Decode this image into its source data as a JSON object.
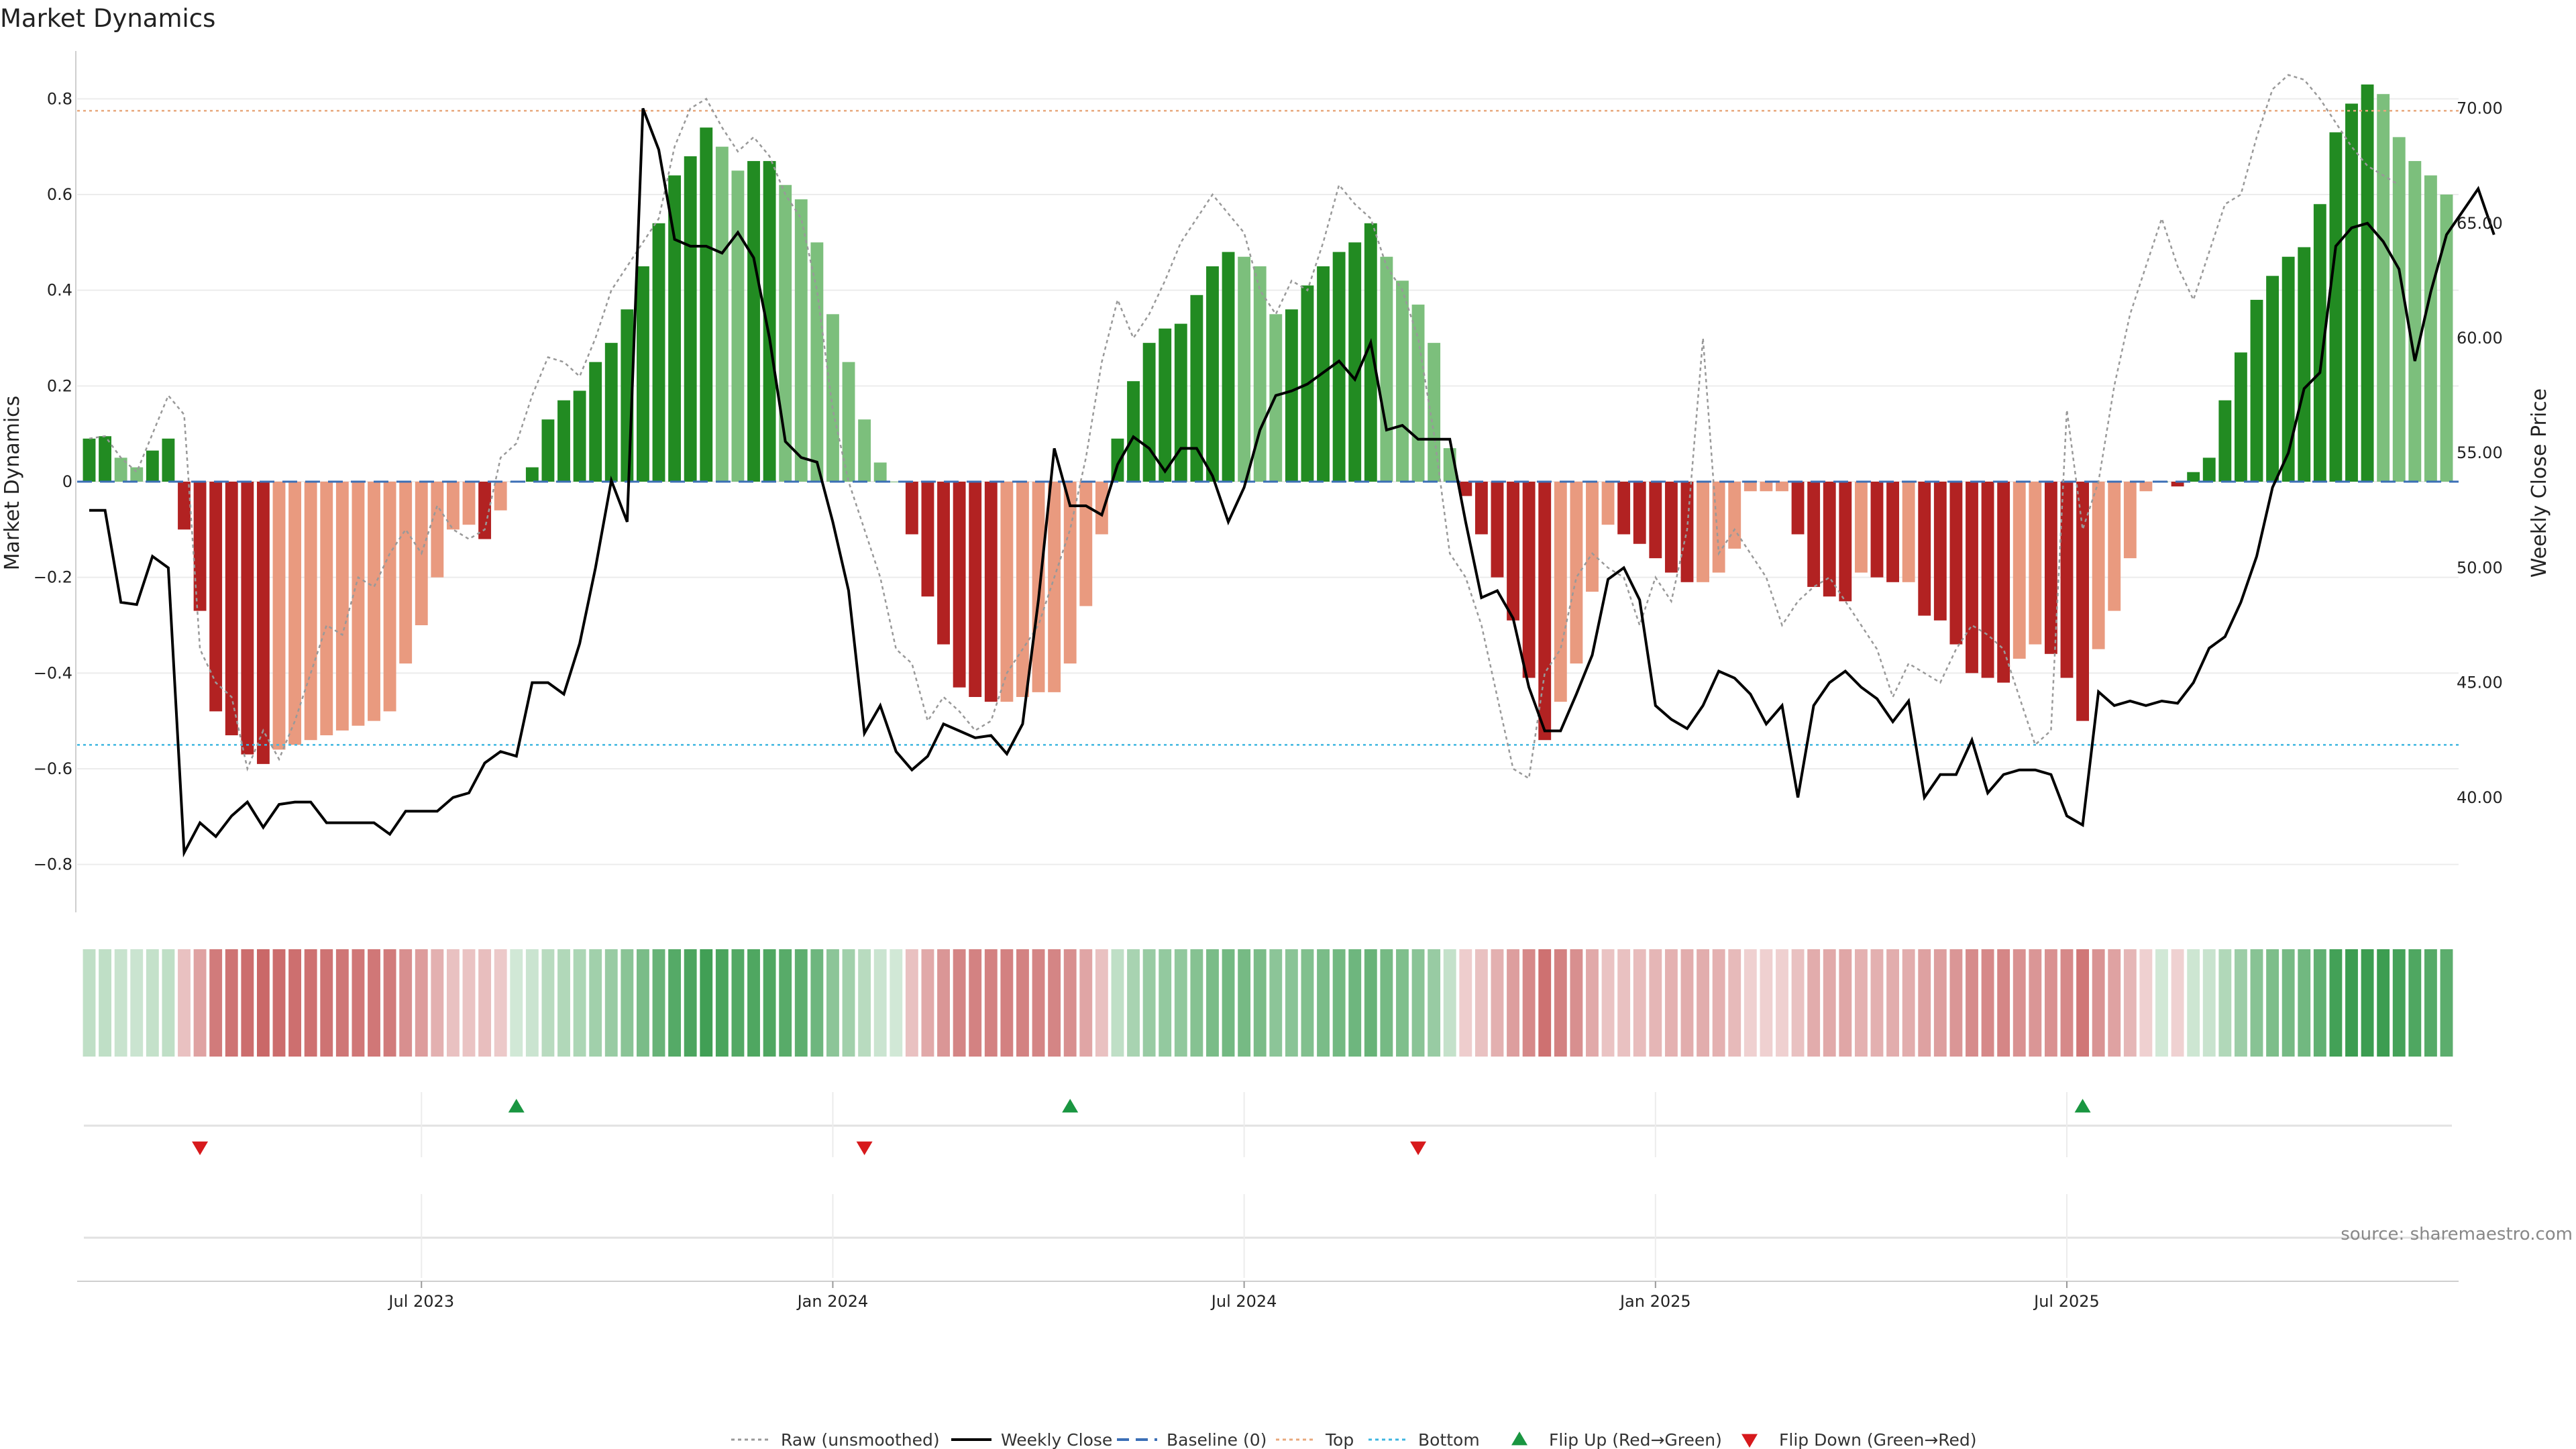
{
  "title": "Market Dynamics",
  "source_note": "source: sharemaestro.com",
  "colors": {
    "strong_green": "#228b22",
    "light_green": "#7cbf7c",
    "strong_red": "#b22222",
    "light_red": "#e99a7f",
    "raw": "#999999",
    "close": "#000000",
    "baseline": "#3b6fb6",
    "top": "#e8a87c",
    "bottom": "#3fb6e0",
    "flip_up": "#1a9641",
    "flip_down": "#d7191c"
  },
  "legend": [
    {
      "key": "raw",
      "label": "Raw (unsmoothed)",
      "style": "dotted-line"
    },
    {
      "key": "close",
      "label": "Weekly Close",
      "style": "line"
    },
    {
      "key": "baseline",
      "label": "Baseline (0)",
      "style": "dashed-line"
    },
    {
      "key": "top",
      "label": "Top",
      "style": "dotted-line"
    },
    {
      "key": "bottom",
      "label": "Bottom",
      "style": "dotted-line"
    },
    {
      "key": "flip_up",
      "label": "Flip Up (Red→Green)",
      "style": "triangle-up"
    },
    {
      "key": "flip_down",
      "label": "Flip Down (Green→Red)",
      "style": "triangle-down"
    }
  ],
  "chart_data": {
    "type": "bar",
    "ylabel_left": "Market Dynamics",
    "ylabel_right": "Weekly Close Price",
    "ylim_left": [
      -0.9,
      0.9
    ],
    "yticks_left": [
      "0.8",
      "0.6",
      "0.4",
      "0.2",
      "0",
      "−0.2",
      "−0.4",
      "−0.6",
      "−0.8"
    ],
    "ylim_right": [
      35,
      72.5
    ],
    "yticks_right": [
      "70.00",
      "65.00",
      "60.00",
      "55.00",
      "50.00",
      "45.00",
      "40.00"
    ],
    "x_tick_labels": [
      "Jul 2023",
      "Jan 2024",
      "Jul 2024",
      "Jan 2025",
      "Jul 2025"
    ],
    "x_tick_weeks": [
      21,
      47,
      73,
      99,
      125
    ],
    "first_week": "2023-02-05",
    "top_line": 0.775,
    "bottom_line": -0.55,
    "baseline": 0,
    "flip_up_weeks": [
      27,
      62,
      126
    ],
    "flip_down_weeks": [
      7,
      49,
      84
    ],
    "momentum": [
      0.09,
      0.095,
      0.05,
      0.03,
      0.065,
      0.09,
      -0.1,
      -0.27,
      -0.48,
      -0.53,
      -0.57,
      -0.59,
      -0.56,
      -0.55,
      -0.54,
      -0.53,
      -0.52,
      -0.51,
      -0.5,
      -0.48,
      -0.38,
      -0.3,
      -0.2,
      -0.1,
      -0.09,
      -0.12,
      -0.06,
      0,
      0.03,
      0.13,
      0.17,
      0.19,
      0.25,
      0.29,
      0.36,
      0.45,
      0.54,
      0.64,
      0.68,
      0.74,
      0.7,
      0.65,
      0.67,
      0.67,
      0.62,
      0.59,
      0.5,
      0.35,
      0.25,
      0.13,
      0.04,
      0,
      -0.11,
      -0.24,
      -0.34,
      -0.43,
      -0.45,
      -0.46,
      -0.46,
      -0.45,
      -0.44,
      -0.44,
      -0.38,
      -0.26,
      -0.11,
      0.09,
      0.21,
      0.29,
      0.32,
      0.33,
      0.39,
      0.45,
      0.48,
      0.47,
      0.45,
      0.35,
      0.36,
      0.41,
      0.45,
      0.48,
      0.5,
      0.54,
      0.47,
      0.42,
      0.37,
      0.29,
      0.07,
      -0.03,
      -0.11,
      -0.2,
      -0.29,
      -0.41,
      -0.54,
      -0.46,
      -0.38,
      -0.23,
      -0.09,
      -0.11,
      -0.13,
      -0.16,
      -0.19,
      -0.21,
      -0.21,
      -0.19,
      -0.14,
      -0.02,
      -0.02,
      -0.02,
      -0.11,
      -0.22,
      -0.24,
      -0.25,
      -0.19,
      -0.2,
      -0.21,
      -0.21,
      -0.28,
      -0.29,
      -0.34,
      -0.4,
      -0.41,
      -0.42,
      -0.37,
      -0.34,
      -0.36,
      -0.41,
      -0.5,
      -0.35,
      -0.27,
      -0.16,
      -0.02,
      0,
      -0.01,
      0.02,
      0.05,
      0.17,
      0.27,
      0.38,
      0.43,
      0.47,
      0.49,
      0.58,
      0.73,
      0.79,
      0.83,
      0.81,
      0.72,
      0.67,
      0.64,
      0.6
    ],
    "raw": [
      0.09,
      0.095,
      0.05,
      0.02,
      0.1,
      0.18,
      0.14,
      -0.35,
      -0.42,
      -0.45,
      -0.6,
      -0.52,
      -0.58,
      -0.5,
      -0.4,
      -0.3,
      -0.32,
      -0.2,
      -0.22,
      -0.15,
      -0.1,
      -0.15,
      -0.05,
      -0.1,
      -0.12,
      -0.1,
      0.05,
      0.08,
      0.18,
      0.26,
      0.25,
      0.22,
      0.3,
      0.4,
      0.45,
      0.5,
      0.55,
      0.7,
      0.78,
      0.8,
      0.74,
      0.69,
      0.72,
      0.68,
      0.6,
      0.55,
      0.4,
      0.15,
      0.0,
      -0.1,
      -0.2,
      -0.35,
      -0.38,
      -0.5,
      -0.45,
      -0.48,
      -0.52,
      -0.5,
      -0.4,
      -0.35,
      -0.3,
      -0.2,
      -0.1,
      0.05,
      0.25,
      0.38,
      0.3,
      0.35,
      0.42,
      0.5,
      0.55,
      0.6,
      0.56,
      0.52,
      0.4,
      0.35,
      0.42,
      0.4,
      0.5,
      0.62,
      0.58,
      0.55,
      0.45,
      0.4,
      0.3,
      0.1,
      -0.15,
      -0.2,
      -0.3,
      -0.45,
      -0.6,
      -0.62,
      -0.4,
      -0.35,
      -0.2,
      -0.15,
      -0.18,
      -0.2,
      -0.3,
      -0.2,
      -0.25,
      -0.1,
      0.3,
      -0.15,
      -0.1,
      -0.15,
      -0.2,
      -0.3,
      -0.25,
      -0.22,
      -0.2,
      -0.25,
      -0.3,
      -0.35,
      -0.45,
      -0.38,
      -0.4,
      -0.42,
      -0.35,
      -0.3,
      -0.32,
      -0.35,
      -0.45,
      -0.55,
      -0.52,
      0.15,
      -0.1,
      0.0,
      0.2,
      0.35,
      0.45,
      0.55,
      0.45,
      0.38,
      0.48,
      0.58,
      0.6,
      0.72,
      0.82,
      0.85,
      0.84,
      0.8,
      0.75,
      0.7,
      0.66,
      0.64,
      0.62
    ],
    "weekly_close": [
      52.5,
      52.5,
      48.5,
      48.4,
      50.5,
      50.0,
      37.6,
      38.9,
      38.3,
      39.2,
      39.8,
      38.7,
      39.7,
      39.8,
      39.8,
      38.9,
      38.9,
      38.9,
      38.9,
      38.4,
      39.4,
      39.4,
      39.4,
      40.0,
      40.2,
      41.5,
      42.0,
      41.8,
      45.0,
      45.0,
      44.5,
      46.7,
      50.0,
      53.8,
      52.0,
      70.0,
      68.2,
      64.3,
      64.0,
      64.0,
      63.7,
      64.6,
      63.5,
      60.0,
      55.5,
      54.8,
      54.6,
      52.0,
      49.0,
      42.8,
      44.0,
      42.0,
      41.2,
      41.8,
      43.2,
      42.9,
      42.6,
      42.7,
      41.9,
      43.2,
      48.6,
      55.2,
      52.7,
      52.7,
      52.3,
      54.5,
      55.7,
      55.2,
      54.2,
      55.2,
      55.2,
      54.0,
      52.0,
      53.5,
      56.0,
      57.5,
      57.7,
      58.0,
      58.5,
      59.0,
      58.2,
      59.8,
      56.0,
      56.2,
      55.6,
      55.6,
      55.6,
      52.0,
      48.7,
      49.0,
      47.8,
      44.8,
      42.9,
      42.9,
      44.5,
      46.2,
      49.5,
      50.0,
      48.6,
      44.0,
      43.4,
      43.0,
      44.0,
      45.5,
      45.2,
      44.5,
      43.2,
      44.0,
      40.0,
      44.0,
      45.0,
      45.5,
      44.8,
      44.3,
      43.3,
      44.2,
      40.0,
      41.0,
      41.0,
      42.5,
      40.2,
      41.0,
      41.2,
      41.2,
      41.0,
      39.2,
      38.8,
      44.6,
      44.0,
      44.2,
      44.0,
      44.2,
      44.1,
      45.0,
      46.5,
      47.0,
      48.5,
      50.5,
      53.5,
      55.0,
      57.8,
      58.5,
      64.0,
      64.8,
      65.0,
      64.2,
      63.0,
      59.0,
      62.0,
      64.5,
      65.5,
      66.5,
      64.5
    ]
  }
}
